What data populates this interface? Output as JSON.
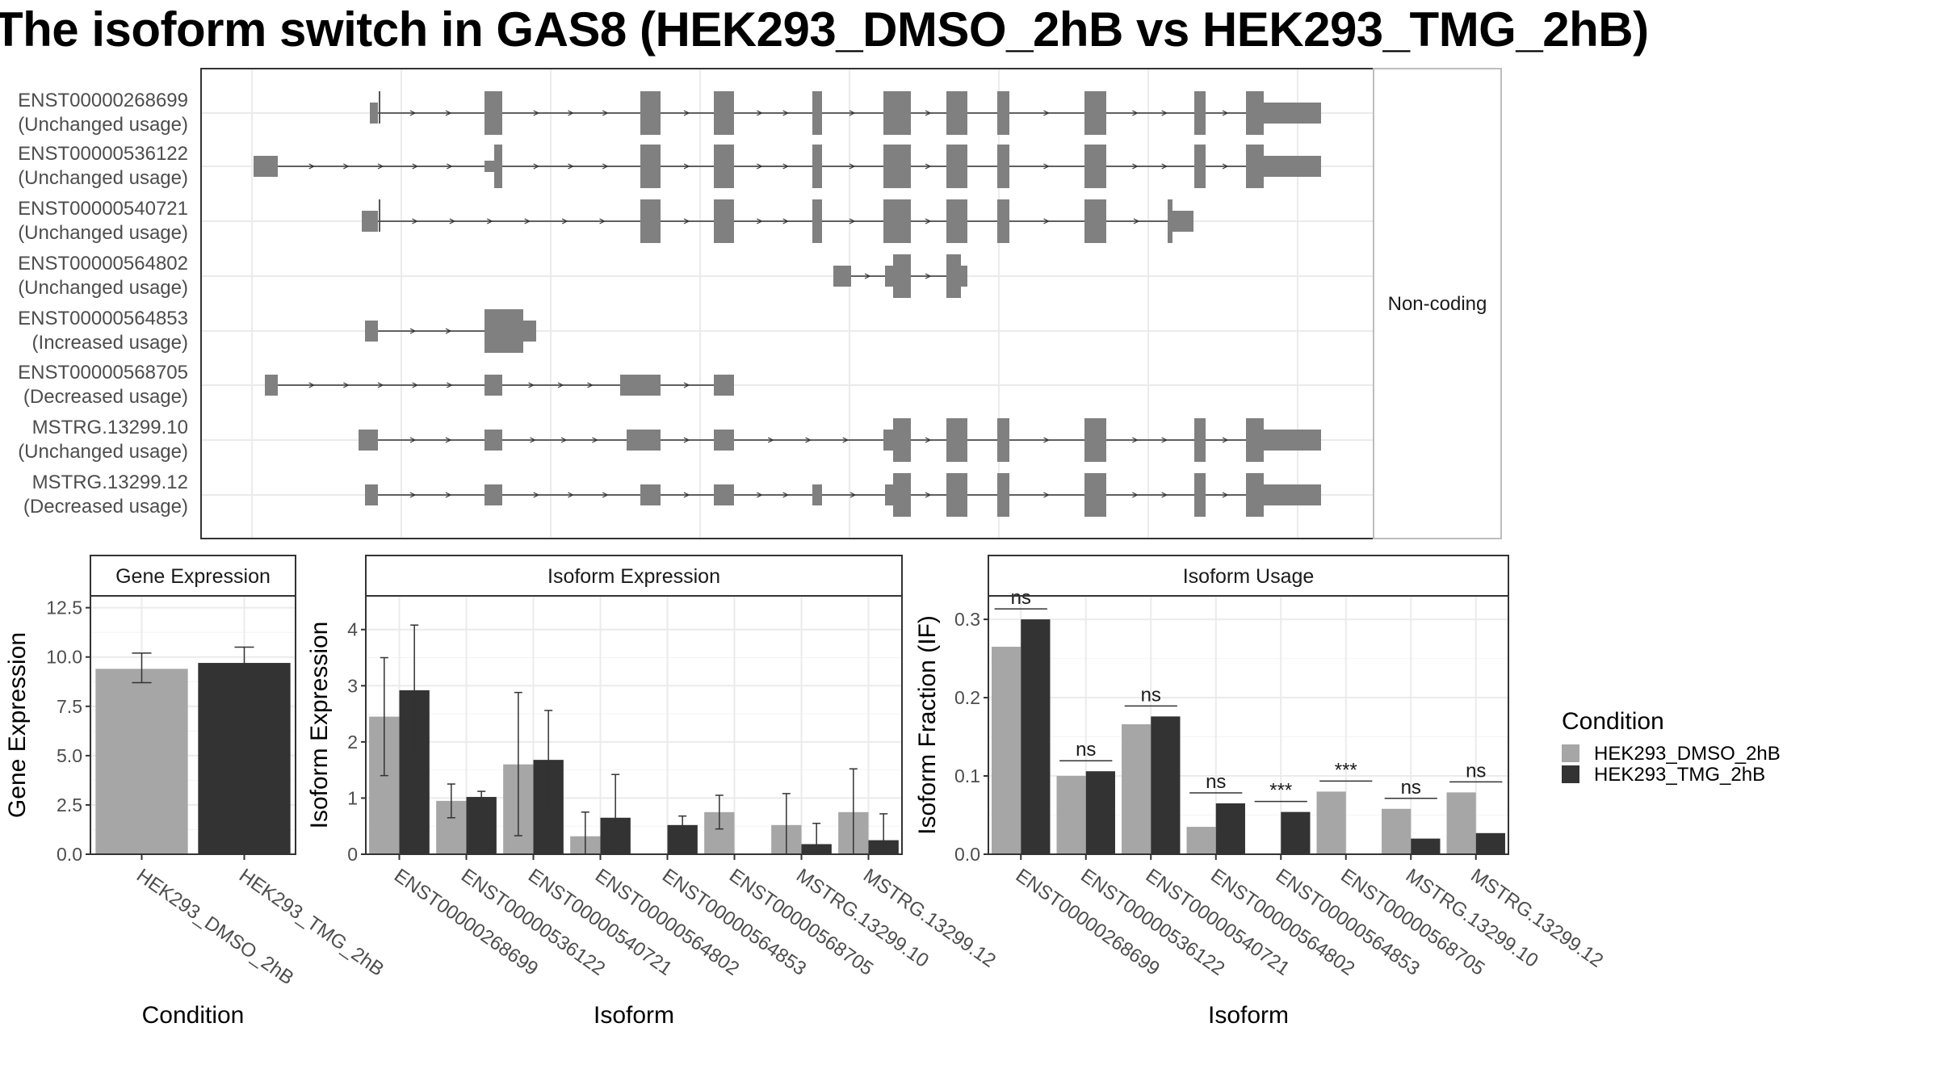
{
  "title": "The isoform switch in GAS8 (HEK293_DMSO_2hB vs HEK293_TMG_2hB)",
  "colors": {
    "dmso": "#a6a6a6",
    "tmg": "#333333",
    "exon": "#808080",
    "grid": "#ebebeb"
  },
  "chart_data": [
    {
      "type": "gene_structure",
      "facet_label": "Non-coding",
      "transcripts": [
        {
          "id": "ENST00000268699",
          "usage": "(Unchanged usage)"
        },
        {
          "id": "ENST00000536122",
          "usage": "(Unchanged usage)"
        },
        {
          "id": "ENST00000540721",
          "usage": "(Unchanged usage)"
        },
        {
          "id": "ENST00000564802",
          "usage": "(Unchanged usage)"
        },
        {
          "id": "ENST00000564853",
          "usage": "(Increased usage)"
        },
        {
          "id": "ENST00000568705",
          "usage": "(Decreased usage)"
        },
        {
          "id": "MSTRG.13299.10",
          "usage": "(Unchanged usage)"
        },
        {
          "id": "MSTRG.13299.12",
          "usage": "(Decreased usage)"
        }
      ]
    },
    {
      "type": "bar",
      "title": "Gene Expression",
      "xlabel": "Condition",
      "ylabel": "Gene Expression",
      "ylim": [
        0,
        13.1
      ],
      "yticks": [
        "0.0",
        "2.5",
        "5.0",
        "7.5",
        "10.0",
        "12.5"
      ],
      "categories": [
        "HEK293_DMSO_2hB",
        "HEK293_TMG_2hB"
      ],
      "values": [
        9.4,
        9.7
      ],
      "errors": [
        [
          8.7,
          10.2
        ],
        [
          8.9,
          10.5
        ]
      ]
    },
    {
      "type": "bar",
      "title": "Isoform Expression",
      "xlabel": "Isoform",
      "ylabel": "Isoform Expression",
      "ylim": [
        0,
        4.6
      ],
      "yticks": [
        "0",
        "1",
        "2",
        "3",
        "4"
      ],
      "categories": [
        "ENST00000268699",
        "ENST00000536122",
        "ENST00000540721",
        "ENST00000564802",
        "ENST00000564853",
        "ENST00000568705",
        "MSTRG.13299.10",
        "MSTRG.13299.12"
      ],
      "series": [
        {
          "name": "HEK293_DMSO_2hB",
          "values": [
            2.45,
            0.95,
            1.6,
            0.32,
            0.0,
            0.75,
            0.52,
            0.75
          ],
          "errors": [
            [
              1.4,
              3.5
            ],
            [
              0.65,
              1.25
            ],
            [
              0.33,
              2.88
            ],
            [
              0.0,
              0.75
            ],
            [
              0.0,
              0.0
            ],
            [
              0.45,
              1.05
            ],
            [
              0.0,
              1.08
            ],
            [
              0.0,
              1.52
            ]
          ]
        },
        {
          "name": "HEK293_TMG_2hB",
          "values": [
            2.92,
            1.02,
            1.68,
            0.65,
            0.52,
            0.0,
            0.18,
            0.25
          ],
          "errors": [
            [
              1.75,
              4.08
            ],
            [
              0.9,
              1.12
            ],
            [
              0.8,
              2.56
            ],
            [
              0.0,
              1.42
            ],
            [
              0.35,
              0.68
            ],
            [
              0.0,
              0.0
            ],
            [
              0.0,
              0.55
            ],
            [
              0.0,
              0.72
            ]
          ]
        }
      ]
    },
    {
      "type": "bar",
      "title": "Isoform Usage",
      "xlabel": "Isoform",
      "ylabel": "Isoform Fraction (IF)",
      "ylim": [
        0,
        0.33
      ],
      "yticks": [
        "0.0",
        "0.1",
        "0.2",
        "0.3"
      ],
      "categories": [
        "ENST00000268699",
        "ENST00000536122",
        "ENST00000540721",
        "ENST00000564802",
        "ENST00000564853",
        "ENST00000568705",
        "MSTRG.13299.10",
        "MSTRG.13299.12"
      ],
      "series": [
        {
          "name": "HEK293_DMSO_2hB",
          "values": [
            0.265,
            0.1,
            0.166,
            0.035,
            0.0,
            0.08,
            0.058,
            0.079
          ]
        },
        {
          "name": "HEK293_TMG_2hB",
          "values": [
            0.3,
            0.106,
            0.176,
            0.065,
            0.054,
            0.0,
            0.02,
            0.027
          ]
        }
      ],
      "significance": [
        "ns",
        "ns",
        "ns",
        "ns",
        "***",
        "***",
        "ns",
        "ns"
      ]
    }
  ],
  "legend": {
    "title": "Condition",
    "items": [
      {
        "label": "HEK293_DMSO_2hB",
        "color": "#a6a6a6"
      },
      {
        "label": "HEK293_TMG_2hB",
        "color": "#333333"
      }
    ]
  }
}
